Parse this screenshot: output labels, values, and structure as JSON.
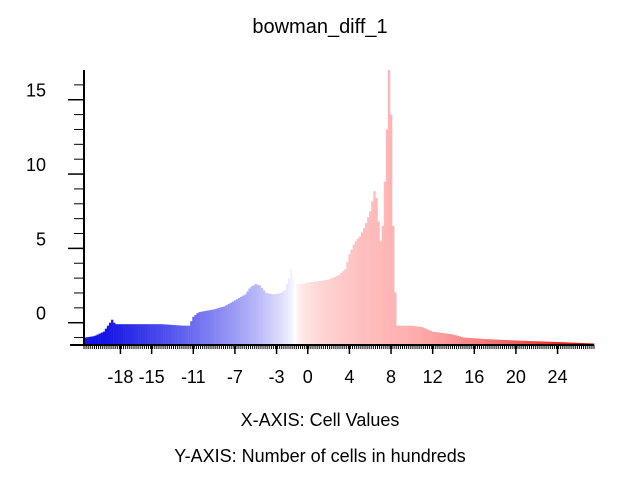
{
  "chart_data": {
    "type": "bar",
    "title": "bowman_diff_1",
    "xlabel": "X-AXIS: Cell Values",
    "ylabel": "Y-AXIS: Number of cells in hundreds",
    "x_tick_labels": [
      "-18",
      "-15",
      "-11",
      "-7",
      "-3",
      "0",
      "4",
      "8",
      "12",
      "16",
      "20",
      "24"
    ],
    "y_tick_labels": [
      "0",
      "5",
      "10",
      "15"
    ],
    "xlim": [
      -21.5,
      27.5
    ],
    "ylim": [
      -1.5,
      17.0
    ],
    "grid": false,
    "legend": "none",
    "colors": {
      "low": "#1515e6",
      "mid": "#ffffff",
      "high": "#e60000",
      "peak": "#ffb3b3",
      "axis": "#000000"
    },
    "bin_width": 0.2,
    "profile": [
      [
        -21.4,
        -1.0
      ],
      [
        -20.5,
        -0.9
      ],
      [
        -19.6,
        -0.6
      ],
      [
        -19.2,
        -0.2
      ],
      [
        -18.8,
        0.2
      ],
      [
        -18.5,
        -0.1
      ],
      [
        -18.0,
        -0.1
      ],
      [
        -16.0,
        -0.1
      ],
      [
        -14.0,
        -0.1
      ],
      [
        -12.0,
        -0.2
      ],
      [
        -11.4,
        -0.2
      ],
      [
        -11.0,
        0.4
      ],
      [
        -10.5,
        0.7
      ],
      [
        -9.0,
        0.9
      ],
      [
        -8.0,
        1.1
      ],
      [
        -7.0,
        1.5
      ],
      [
        -6.0,
        1.9
      ],
      [
        -5.5,
        2.4
      ],
      [
        -5.0,
        2.6
      ],
      [
        -4.6,
        2.5
      ],
      [
        -4.0,
        2.0
      ],
      [
        -3.3,
        1.9
      ],
      [
        -2.6,
        2.0
      ],
      [
        -2.2,
        2.2
      ],
      [
        -1.8,
        3.0
      ],
      [
        -1.6,
        3.6
      ],
      [
        -1.4,
        3.0
      ],
      [
        -1.1,
        2.6
      ],
      [
        -0.5,
        2.6
      ],
      [
        0.0,
        2.7
      ],
      [
        1.0,
        2.8
      ],
      [
        2.0,
        2.9
      ],
      [
        3.0,
        3.2
      ],
      [
        3.6,
        3.6
      ],
      [
        4.0,
        4.6
      ],
      [
        4.5,
        5.4
      ],
      [
        5.0,
        5.8
      ],
      [
        5.5,
        6.5
      ],
      [
        6.0,
        7.5
      ],
      [
        6.3,
        8.5
      ],
      [
        6.5,
        9.2
      ],
      [
        6.8,
        6.8
      ],
      [
        7.0,
        5.5
      ],
      [
        7.2,
        6.5
      ],
      [
        7.4,
        9.5
      ],
      [
        7.6,
        13.0
      ],
      [
        7.8,
        17.0
      ],
      [
        8.0,
        14.0
      ],
      [
        8.2,
        6.5
      ],
      [
        8.5,
        -0.2
      ],
      [
        10.0,
        -0.2
      ],
      [
        11.0,
        -0.3
      ],
      [
        12.0,
        -0.6
      ],
      [
        13.0,
        -0.7
      ],
      [
        14.0,
        -0.8
      ],
      [
        15.0,
        -1.0
      ],
      [
        17.0,
        -1.1
      ],
      [
        20.0,
        -1.2
      ],
      [
        24.0,
        -1.3
      ],
      [
        27.5,
        -1.4
      ]
    ]
  }
}
